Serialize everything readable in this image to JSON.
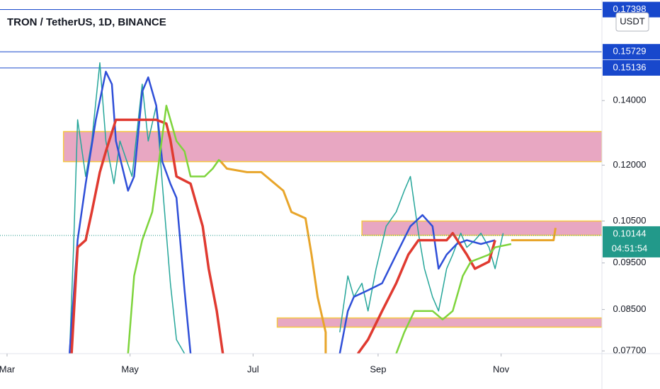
{
  "chart_data": {
    "type": "line",
    "title": "TRON / TetherUS, 1D, BINANCE",
    "currency": "USDT",
    "log_scale": true,
    "ylim": [
      0.0765,
      0.178
    ],
    "xlim": [
      -3.5,
      295
    ],
    "yticks": [
      {
        "value": 0.14,
        "label": "0.14000"
      },
      {
        "value": 0.12,
        "label": "0.12000"
      },
      {
        "value": 0.105,
        "label": "0.10500"
      },
      {
        "value": 0.095,
        "label": "0.09500"
      },
      {
        "value": 0.085,
        "label": "0.08500"
      },
      {
        "value": 0.077,
        "label": "0.07700"
      }
    ],
    "xticks": [
      {
        "value": 0,
        "label": "Mar"
      },
      {
        "value": 61,
        "label": "May"
      },
      {
        "value": 122,
        "label": "Jul"
      },
      {
        "value": 184,
        "label": "Sep"
      },
      {
        "value": 245,
        "label": "Nov"
      }
    ],
    "levels": [
      {
        "value": 0.17398,
        "label": "0.17398"
      },
      {
        "value": 0.15729,
        "label": "0.15729"
      },
      {
        "value": 0.15136,
        "label": "0.15136"
      }
    ],
    "level_color": "#1848cc",
    "zones": [
      {
        "low": 0.121,
        "high": 0.13,
        "start": 28
      },
      {
        "low": 0.1015,
        "high": 0.105,
        "start": 176
      },
      {
        "low": 0.0815,
        "high": 0.0833,
        "start": 134
      }
    ],
    "zone_color": "#e08aae",
    "zone_border": "#f5c842",
    "last_price": {
      "value": 0.10144,
      "label": "0.10144"
    },
    "countdown": "04:51:54",
    "last_color": "#22998a",
    "series": [
      {
        "color": "#26a69a",
        "line_width": 1.5,
        "x": [
          31,
          33,
          35,
          39,
          42,
          46,
          49,
          53,
          56,
          62,
          67,
          70,
          74,
          77,
          81,
          84,
          88,
          120,
          165,
          169,
          172,
          176,
          179,
          183,
          188,
          193,
          197,
          200,
          204,
          207,
          211,
          214,
          218,
          221,
          225,
          228,
          232,
          235,
          239,
          242,
          246
        ],
        "values": [
          0.0765,
          0.0986,
          0.1337,
          0.1168,
          0.1271,
          0.1532,
          0.1271,
          0.1148,
          0.1271,
          0.1168,
          0.1456,
          0.1271,
          0.1383,
          0.1148,
          0.0905,
          0.0791,
          0.0765,
          null,
          0.0805,
          0.0921,
          0.0876,
          0.0905,
          0.0847,
          0.0937,
          0.1037,
          0.1073,
          0.1129,
          0.1168,
          0.102,
          0.0937,
          0.0876,
          0.0847,
          0.0937,
          0.0969,
          0.102,
          0.0986,
          0.1003,
          0.102,
          0.0986,
          0.0937,
          0.102
        ]
      },
      {
        "color": "#2f4fd8",
        "line_width": 2.5,
        "x": [
          31,
          35,
          39,
          44,
          49,
          52,
          54,
          60,
          63,
          67,
          70,
          74,
          77,
          81,
          84,
          88,
          91,
          120,
          165,
          169,
          172,
          179,
          186,
          193,
          200,
          206,
          211,
          214,
          218,
          223,
          228,
          235,
          242
        ],
        "values": [
          0.0765,
          0.1003,
          0.1148,
          0.1337,
          0.15,
          0.1456,
          0.1271,
          0.1129,
          0.1168,
          0.143,
          0.148,
          0.1383,
          0.121,
          0.1148,
          0.111,
          0.089,
          0.0765,
          null,
          0.0765,
          0.0847,
          0.0876,
          0.089,
          0.0905,
          0.0969,
          0.1037,
          0.1065,
          0.1037,
          0.0937,
          0.0969,
          0.0994,
          0.1003,
          0.0994,
          0.1003
        ]
      },
      {
        "color": "#e03a30",
        "line_width": 3.5,
        "x": [
          32,
          35,
          39,
          42,
          46,
          49,
          54,
          60,
          67,
          74,
          79,
          81,
          84,
          91,
          97,
          100,
          104,
          107,
          120,
          174,
          179,
          186,
          193,
          199,
          204,
          218,
          221,
          228,
          232,
          239,
          242
        ],
        "values": [
          0.0765,
          0.0986,
          0.1003,
          0.1073,
          0.118,
          0.124,
          0.1337,
          0.1337,
          0.1337,
          0.1337,
          0.1325,
          0.1275,
          0.1168,
          0.1148,
          0.1037,
          0.0937,
          0.0847,
          0.0765,
          null,
          0.0765,
          0.0791,
          0.0847,
          0.0905,
          0.0969,
          0.1003,
          0.1003,
          0.102,
          0.0969,
          0.0937,
          0.0953,
          0.1003
        ]
      },
      {
        "color": "#7ed43c",
        "line_width": 2.5,
        "x": [
          60,
          63,
          67,
          72,
          79,
          84,
          88,
          91,
          98,
          102,
          105,
          106,
          120,
          193,
          197,
          202,
          211,
          216,
          221,
          226,
          230,
          239,
          242,
          250
        ],
        "values": [
          0.0765,
          0.0921,
          0.1003,
          0.1073,
          0.1383,
          0.1271,
          0.124,
          0.1168,
          0.1168,
          0.119,
          0.1215,
          0.121,
          null,
          0.0765,
          0.0805,
          0.0847,
          0.0847,
          0.083,
          0.0847,
          0.0921,
          0.0953,
          0.0969,
          0.0986,
          0.0994
        ]
      },
      {
        "color": "#e8a52a",
        "line_width": 3,
        "x": [
          106,
          109,
          119,
          126,
          137,
          141,
          148,
          151,
          154,
          158,
          158,
          120,
          250,
          271,
          272
        ],
        "values": [
          0.121,
          0.119,
          0.118,
          0.118,
          0.1129,
          0.1073,
          0.1057,
          0.0969,
          0.0876,
          0.0805,
          0.0765,
          null,
          0.1003,
          0.1003,
          0.1033
        ]
      }
    ]
  }
}
